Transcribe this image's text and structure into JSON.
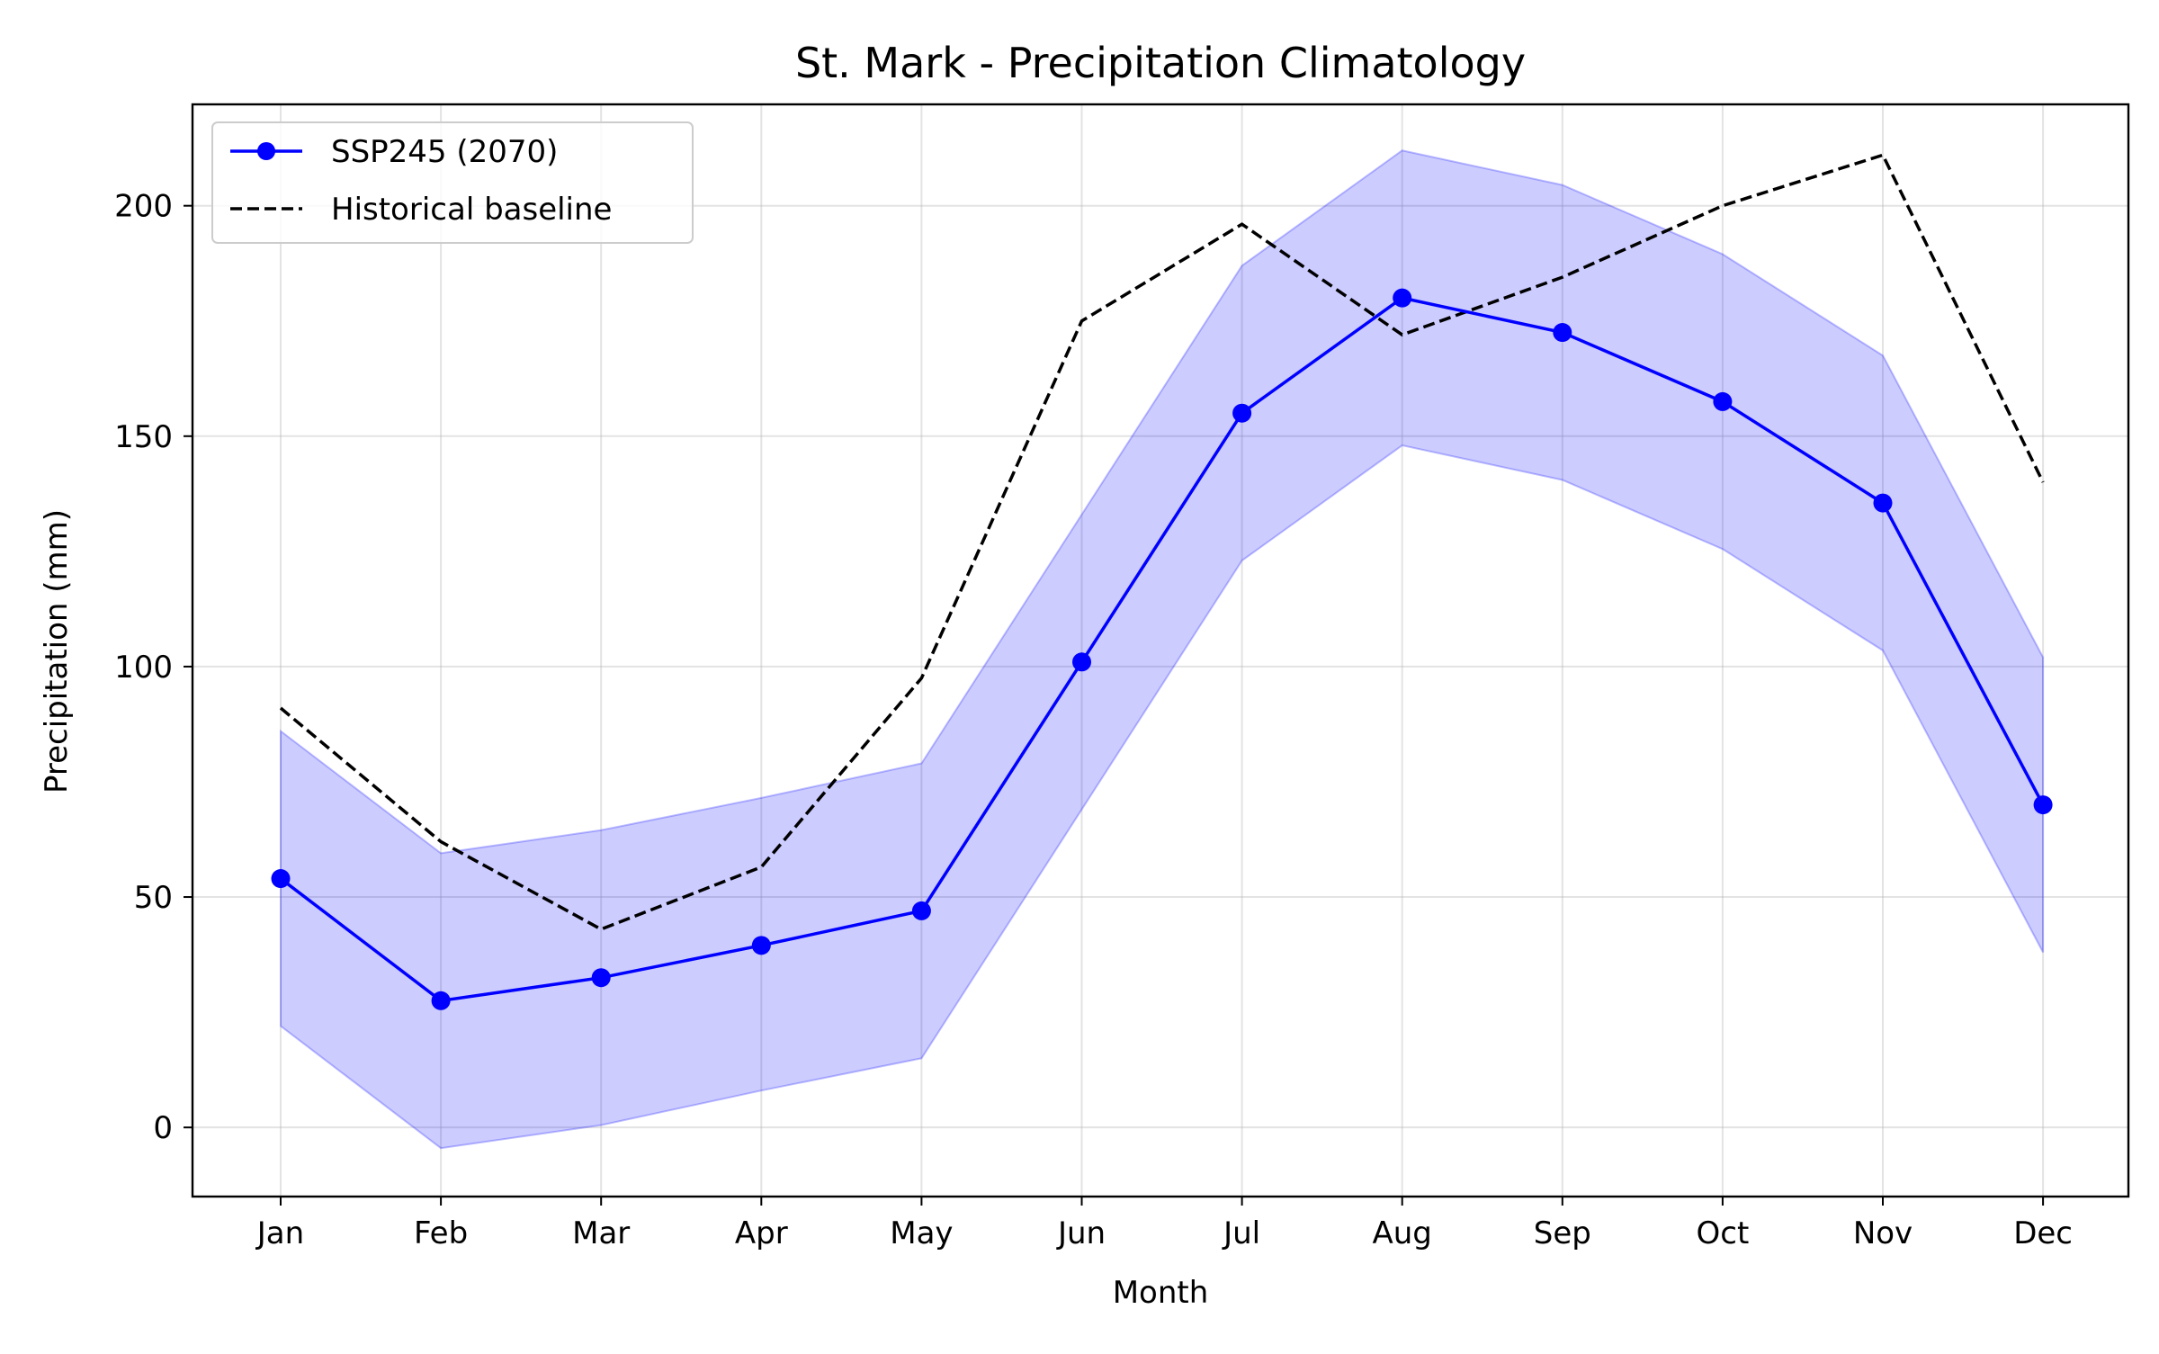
{
  "chart_data": {
    "type": "line",
    "title": "St. Mark - Precipitation Climatology",
    "xlabel": "Month",
    "ylabel": "Precipitation (mm)",
    "categories": [
      "Jan",
      "Feb",
      "Mar",
      "Apr",
      "May",
      "Jun",
      "Jul",
      "Aug",
      "Sep",
      "Oct",
      "Nov",
      "Dec"
    ],
    "ylim": [
      -15,
      222
    ],
    "yticks": [
      0,
      50,
      100,
      150,
      200
    ],
    "grid": true,
    "legend_position": "top-left",
    "series": [
      {
        "name": "SSP245 (2070)",
        "style": "solid line with circle markers",
        "color": "#0000ff",
        "values": [
          54,
          27.5,
          32.5,
          39.5,
          47,
          101,
          155,
          180,
          172.5,
          157.5,
          135.5,
          70
        ]
      },
      {
        "name": "Historical baseline",
        "style": "dashed line",
        "color": "#000000",
        "values": [
          91,
          62,
          43,
          56.5,
          97.5,
          175,
          196,
          172,
          184.5,
          200,
          211,
          140
        ]
      }
    ],
    "band": {
      "series": "SSP245 (2070)",
      "fill_color": "#0000ff",
      "fill_opacity": 0.2,
      "lower": [
        22,
        -4.5,
        0.5,
        8,
        15,
        69,
        123,
        148,
        140.5,
        125.5,
        103.5,
        38
      ],
      "upper": [
        86,
        59.5,
        64.5,
        71.5,
        79,
        133,
        187,
        212,
        204.5,
        189.5,
        167.5,
        102
      ]
    }
  }
}
